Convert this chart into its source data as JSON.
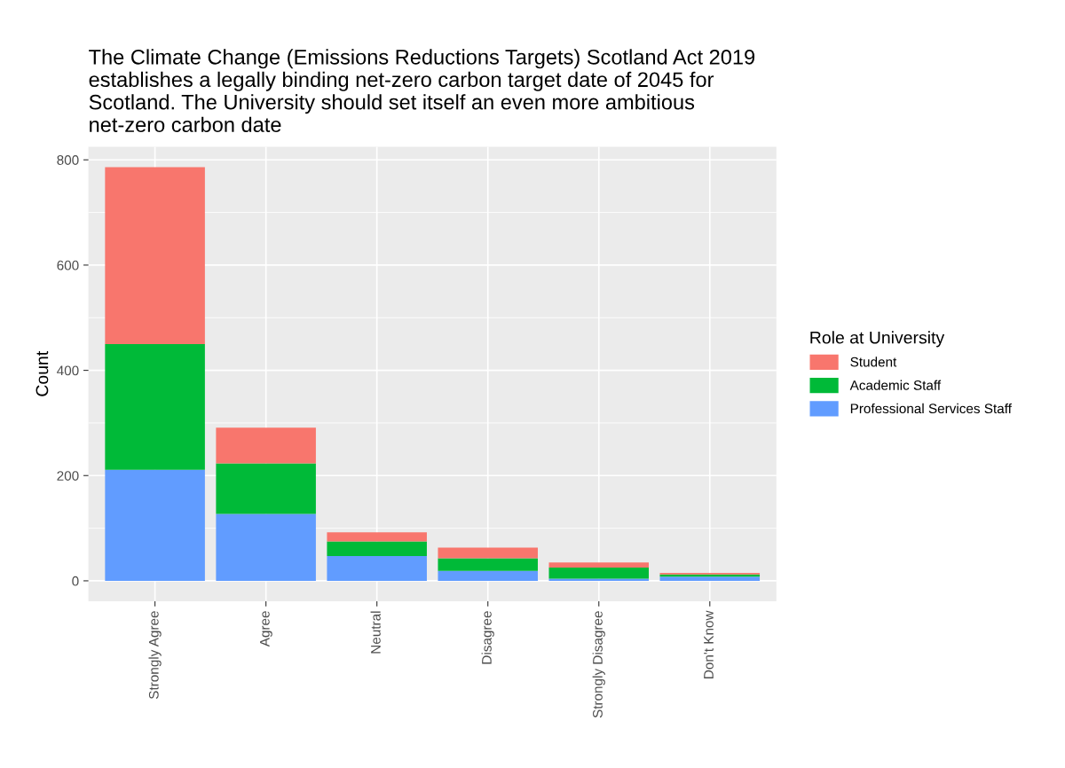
{
  "chart_data": {
    "type": "bar",
    "stacked": true,
    "title": "The Climate Change (Emissions Reductions Targets) Scotland Act 2019\nestablishes a legally binding net-zero carbon target date of 2045 for\nScotland. The University should set itself an even more ambitious\nnet-zero carbon date",
    "ylabel": "Count",
    "legend_title": "Role at University",
    "categories": [
      "Strongly Agree",
      "Agree",
      "Neutral",
      "Disagree",
      "Strongly Disagree",
      "Don't Know"
    ],
    "series": [
      {
        "name": "Professional Services Staff",
        "color": "#619cff",
        "values": [
          211,
          127,
          47,
          19,
          4,
          8
        ]
      },
      {
        "name": "Academic Staff",
        "color": "#00ba38",
        "values": [
          239,
          96,
          28,
          24,
          21,
          4
        ]
      },
      {
        "name": "Student",
        "color": "#f8766d",
        "values": [
          336,
          68,
          17,
          20,
          10,
          3
        ]
      }
    ],
    "ylim": [
      -39,
      825
    ],
    "yticks": [
      0,
      200,
      400,
      600,
      800
    ],
    "grid": true,
    "legend": "right"
  }
}
